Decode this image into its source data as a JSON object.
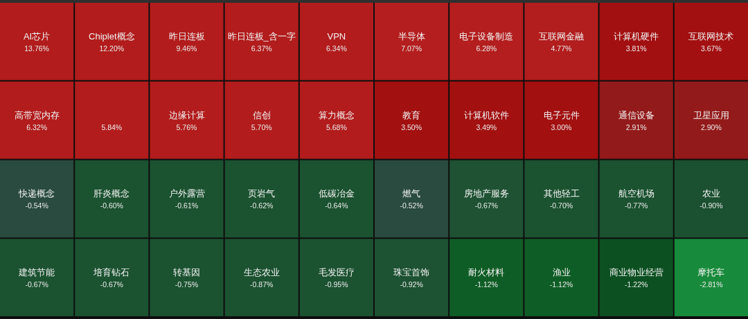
{
  "chart_data": {
    "type": "other",
    "categories": [
      "AI芯片",
      "Chiplet概念",
      "昨日连板",
      "昨日连板_含一字",
      "VPN",
      "半导体",
      "电子设备制造",
      "互联网金融",
      "计算机硬件",
      "互联网技术",
      "高带宽内存",
      null,
      "边缘计算",
      "信创",
      "算力概念",
      "教育",
      "计算机软件",
      "电子元件",
      "通信设备",
      "卫星应用",
      "快递概念",
      "肝炎概念",
      "户外露营",
      "页岩气",
      "低碳冶金",
      "燃气",
      "房地产服务",
      "其他轻工",
      "航空机场",
      "农业",
      "建筑节能",
      "培育钻石",
      "转基因",
      "生态农业",
      "毛发医疗",
      "珠宝首饰",
      "耐火材料",
      "渔业",
      "商业物业经营",
      "摩托车"
    ],
    "values": [
      13.76,
      12.2,
      9.46,
      6.37,
      6.34,
      7.07,
      6.28,
      4.77,
      3.81,
      3.67,
      6.32,
      5.84,
      5.76,
      5.7,
      5.68,
      3.5,
      3.49,
      3.0,
      2.91,
      2.9,
      -0.54,
      -0.6,
      -0.61,
      -0.62,
      -0.64,
      -0.52,
      -0.67,
      -0.7,
      -0.77,
      -0.9,
      -0.67,
      -0.67,
      -0.75,
      -0.87,
      -0.95,
      -0.92,
      -1.12,
      -1.12,
      -1.22,
      -2.81
    ],
    "value_labels": [
      "13.76%",
      "12.20%",
      "9.46%",
      "6.37%",
      "6.34%",
      "7.07%",
      "6.28%",
      "4.77%",
      "3.81%",
      "3.67%",
      "6.32%",
      "5.84%",
      "5.76%",
      "5.70%",
      "5.68%",
      "3.50%",
      "3.49%",
      "3.00%",
      "2.91%",
      "2.90%",
      "-0.54%",
      "-0.60%",
      "-0.61%",
      "-0.62%",
      "-0.64%",
      "-0.52%",
      "-0.67%",
      "-0.70%",
      "-0.77%",
      "-0.90%",
      "-0.67%",
      "-0.67%",
      "-0.75%",
      "-0.87%",
      "-0.95%",
      "-0.92%",
      "-1.12%",
      "-1.12%",
      "-1.22%",
      "-2.81%"
    ],
    "colors": [
      "#b21c1c",
      "#b21c1c",
      "#b21c1c",
      "#b21c1c",
      "#b21c1c",
      "#b41e1e",
      "#b41e1e",
      "#b21d1d",
      "#a31011",
      "#a31011",
      "#b21c1c",
      "#b21c1c",
      "#b21c1c",
      "#b21c1c",
      "#b21c1c",
      "#a21010",
      "#a21010",
      "#a21010",
      "#931a1a",
      "#931a1a",
      "#2a4b3f",
      "#1b5230",
      "#1b5230",
      "#1b5230",
      "#1b5230",
      "#2a4b3f",
      "#1e5233",
      "#1b5230",
      "#1b5230",
      "#1b5030",
      "#1b5230",
      "#1b5230",
      "#1b5230",
      "#1b5230",
      "#1b5230",
      "#1d5232",
      "#0f5d26",
      "#0f5d26",
      "#0c5021",
      "#188a3b"
    ]
  }
}
